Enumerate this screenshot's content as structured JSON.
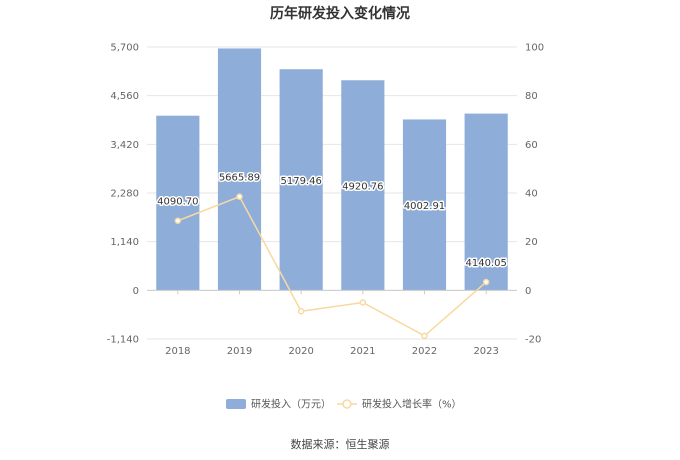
{
  "chart_data": {
    "type": "bar",
    "title": "历年研发投入变化情况",
    "categories": [
      "2018",
      "2019",
      "2020",
      "2021",
      "2022",
      "2023"
    ],
    "series": [
      {
        "name": "研发投入（万元）",
        "type": "bar",
        "axis": "left",
        "values": [
          4090.7,
          5665.89,
          5179.46,
          4920.76,
          4002.91,
          4140.05
        ],
        "labels": [
          "4090.70",
          "5665.89",
          "5179.46",
          "4920.76",
          "4002.91",
          "4140.05"
        ],
        "color": "#8eadd9"
      },
      {
        "name": "研发投入增长率（%）",
        "type": "line",
        "axis": "right",
        "values": [
          28.6,
          38.5,
          -8.6,
          -5.0,
          -18.7,
          3.4
        ],
        "color": "#f8d9a0"
      }
    ],
    "y_left": {
      "ylim": [
        -1140,
        5700
      ],
      "ticks": [
        -1140,
        0,
        1140,
        2280,
        3420,
        4560,
        5700
      ],
      "tick_labels": [
        "-1,140",
        "0",
        "1,140",
        "2,280",
        "3,420",
        "4,560",
        "5,700"
      ]
    },
    "y_right": {
      "ylim": [
        -20,
        100
      ],
      "ticks": [
        -20,
        0,
        20,
        40,
        60,
        80,
        100
      ],
      "tick_labels": [
        "-20",
        "0",
        "20",
        "40",
        "60",
        "80",
        "100"
      ]
    },
    "grid": true,
    "legend": "bottom-center"
  },
  "footer": {
    "source": "数据来源：恒生聚源"
  }
}
